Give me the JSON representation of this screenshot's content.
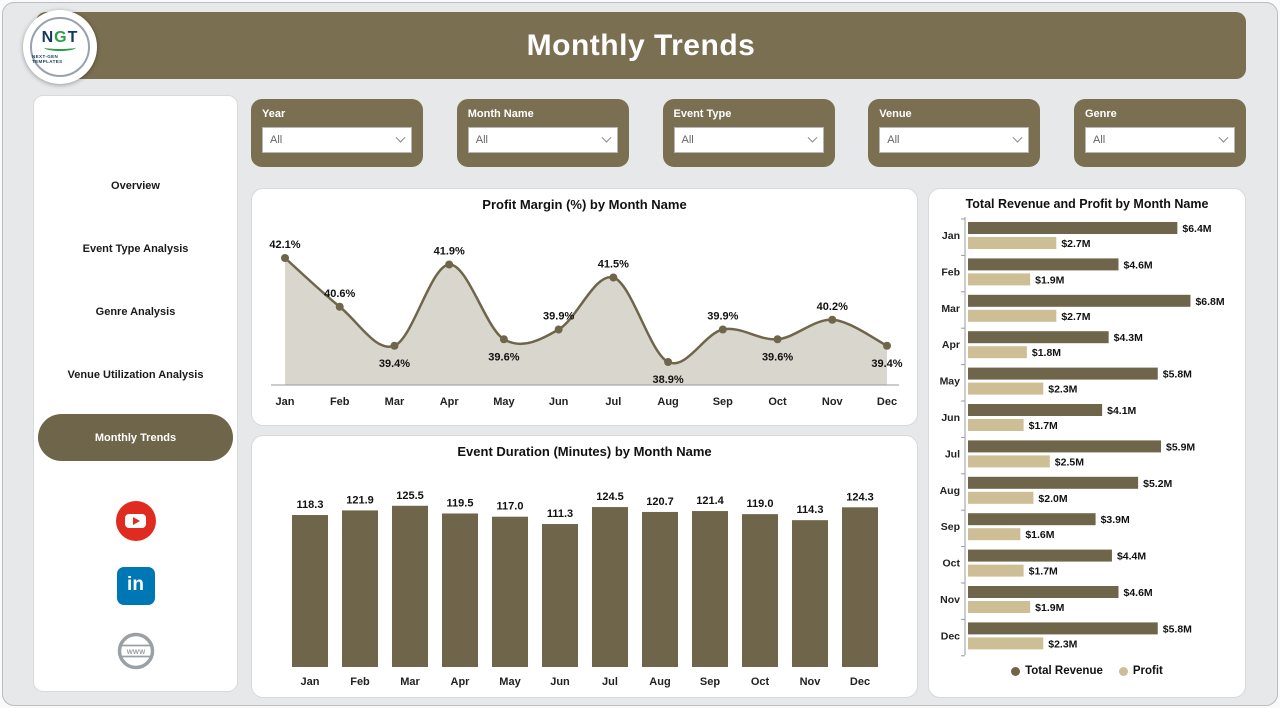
{
  "header": {
    "title": "Monthly Trends"
  },
  "logo": {
    "n": "N",
    "g": "G",
    "t": "T",
    "sub": "NEXT-GEN TEMPLATES"
  },
  "sidebar": {
    "items": [
      {
        "label": "Overview",
        "active": false
      },
      {
        "label": "Event Type Analysis",
        "active": false
      },
      {
        "label": "Genre Analysis",
        "active": false
      },
      {
        "label": "Venue Utilization Analysis",
        "active": false
      },
      {
        "label": "Monthly Trends",
        "active": true
      }
    ],
    "linkedin_label": "in",
    "web_label": "WWW"
  },
  "filters": [
    {
      "label": "Year",
      "value": "All"
    },
    {
      "label": "Month Name",
      "value": "All"
    },
    {
      "label": "Event Type",
      "value": "All"
    },
    {
      "label": "Venue",
      "value": "All"
    },
    {
      "label": "Genre",
      "value": "All"
    }
  ],
  "colors": {
    "accent": "#7A6F50",
    "bar_dark": "#6F654A",
    "tan": "#CDBE95",
    "area_fill": "#D9D6CE",
    "youtube_red": "#DF2B20",
    "linkedin_blue": "#0077B5"
  },
  "chart_data": [
    {
      "type": "area",
      "title": "Profit Margin (%) by Month Name",
      "categories": [
        "Jan",
        "Feb",
        "Mar",
        "Apr",
        "May",
        "Jun",
        "Jul",
        "Aug",
        "Sep",
        "Oct",
        "Nov",
        "Dec"
      ],
      "values": [
        42.1,
        40.6,
        39.4,
        41.9,
        39.6,
        39.9,
        41.5,
        38.9,
        39.9,
        39.6,
        40.2,
        39.4
      ],
      "labels": [
        "42.1%",
        "40.6%",
        "39.4%",
        "41.9%",
        "39.6%",
        "39.9%",
        "41.5%",
        "38.9%",
        "39.9%",
        "39.6%",
        "40.2%",
        "39.4%"
      ],
      "xlabel": "Month Name",
      "ylabel": "Profit Margin (%)",
      "ylim": [
        38.5,
        42.5
      ],
      "grid": false,
      "legend": "none"
    },
    {
      "type": "bar",
      "title": "Event Duration (Minutes) by Month Name",
      "categories": [
        "Jan",
        "Feb",
        "Mar",
        "Apr",
        "May",
        "Jun",
        "Jul",
        "Aug",
        "Sep",
        "Oct",
        "Nov",
        "Dec"
      ],
      "values": [
        118.3,
        121.9,
        125.5,
        119.5,
        117.0,
        111.3,
        124.5,
        120.7,
        121.4,
        119.0,
        114.3,
        124.3
      ],
      "labels": [
        "118.3",
        "121.9",
        "125.5",
        "119.5",
        "117.0",
        "111.3",
        "124.5",
        "120.7",
        "121.4",
        "119.0",
        "114.3",
        "124.3"
      ],
      "xlabel": "Month Name",
      "ylabel": "Event Duration (Minutes)",
      "ylim": [
        0,
        130
      ],
      "grid": false,
      "legend": "none"
    },
    {
      "type": "bar-horizontal",
      "title": "Total Revenue and Profit by Month Name",
      "categories": [
        "Jan",
        "Feb",
        "Mar",
        "Apr",
        "May",
        "Jun",
        "Jul",
        "Aug",
        "Sep",
        "Oct",
        "Nov",
        "Dec"
      ],
      "series": [
        {
          "name": "Total Revenue",
          "values": [
            6.4,
            4.6,
            6.8,
            4.3,
            5.8,
            4.1,
            5.9,
            5.2,
            3.9,
            4.4,
            4.6,
            5.8
          ],
          "labels": [
            "$6.4M",
            "$4.6M",
            "$6.8M",
            "$4.3M",
            "$5.8M",
            "$4.1M",
            "$5.9M",
            "$5.2M",
            "$3.9M",
            "$4.4M",
            "$4.6M",
            "$5.8M"
          ]
        },
        {
          "name": "Profit",
          "values": [
            2.7,
            1.9,
            2.7,
            1.8,
            2.3,
            1.7,
            2.5,
            2.0,
            1.6,
            1.7,
            1.9,
            2.3
          ],
          "labels": [
            "$2.7M",
            "$1.9M",
            "$2.7M",
            "$1.8M",
            "$2.3M",
            "$1.7M",
            "$2.5M",
            "$2.0M",
            "$1.6M",
            "$1.7M",
            "$1.9M",
            "$2.3M"
          ]
        }
      ],
      "xlim": [
        0,
        7
      ],
      "legend_position": "bottom"
    }
  ]
}
